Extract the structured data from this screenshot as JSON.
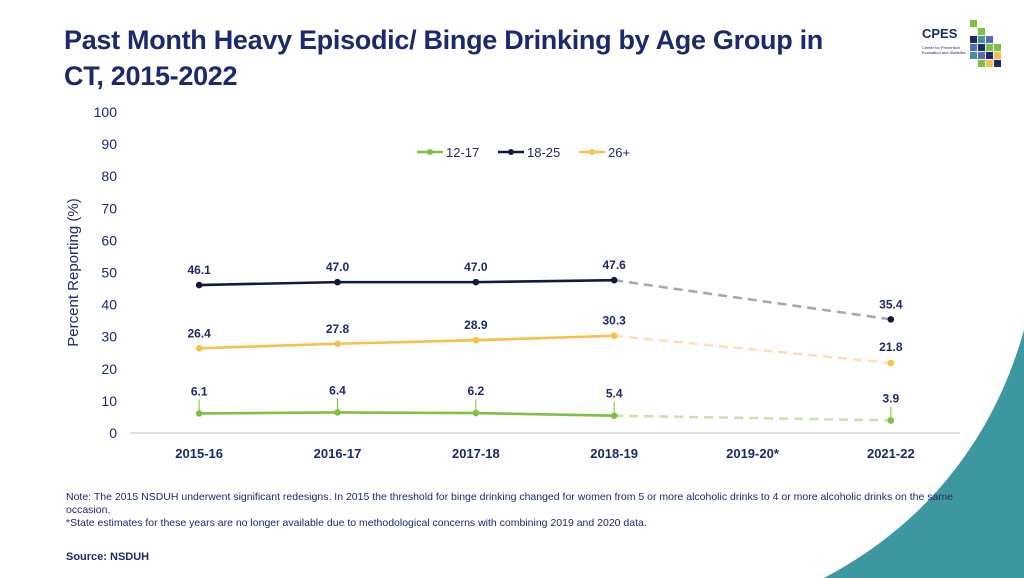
{
  "title": "Past Month Heavy Episodic/ Binge Drinking by Age Group in CT, 2015-2022",
  "logo": {
    "text": "CPES",
    "subtext": "Center for Prevention Evaluation and Statistics"
  },
  "notes": [
    "Note: The 2015 NSDUH underwent significant redesigns. In 2015 the threshold for binge drinking changed for women from 5 or more alcoholic drinks to 4 or more alcoholic drinks on the same occasion.",
    "*State estimates for these years are no longer available due to methodological concerns with combining 2019 and 2020 data."
  ],
  "source": "Source: NSDUH",
  "colors": {
    "title": "#1a2a6c",
    "accent_teal": "#3d97a0",
    "series_12_17": "#7cc142",
    "series_18_25": "#0d1b3e",
    "series_26_plus": "#f7c04a"
  },
  "chart_data": {
    "type": "line",
    "title": "Past Month Heavy Episodic/ Binge Drinking by Age Group in CT, 2015-2022",
    "xlabel": "",
    "ylabel": "Percent Reporting (%)",
    "ylim": [
      0,
      100
    ],
    "yticks": [
      0,
      10,
      20,
      30,
      40,
      50,
      60,
      70,
      80,
      90,
      100
    ],
    "categories": [
      "2015-16",
      "2016-17",
      "2017-18",
      "2018-19",
      "2019-20*",
      "2021-22"
    ],
    "grid": false,
    "legend_position": "top-center",
    "series": [
      {
        "name": "12-17",
        "color": "#7cc142",
        "dashed_color": "#c9e4ad",
        "values": [
          6.1,
          6.4,
          6.2,
          5.4,
          null,
          3.9
        ],
        "labels": [
          "6.1",
          "6.4",
          "6.2",
          "5.4",
          "",
          "3.9"
        ]
      },
      {
        "name": "18-25",
        "color": "#0d1b3e",
        "dashed_color": "#a7a9b2",
        "values": [
          46.1,
          47.0,
          47.0,
          47.6,
          null,
          35.4
        ],
        "labels": [
          "46.1",
          "47.0",
          "47.0",
          "47.6",
          "",
          "35.4"
        ]
      },
      {
        "name": "26+",
        "color": "#f7c04a",
        "dashed_color": "#fbe0b8",
        "values": [
          26.4,
          27.8,
          28.9,
          30.3,
          null,
          21.8
        ],
        "labels": [
          "26.4",
          "27.8",
          "28.9",
          "30.3",
          "",
          "21.8"
        ]
      }
    ]
  }
}
